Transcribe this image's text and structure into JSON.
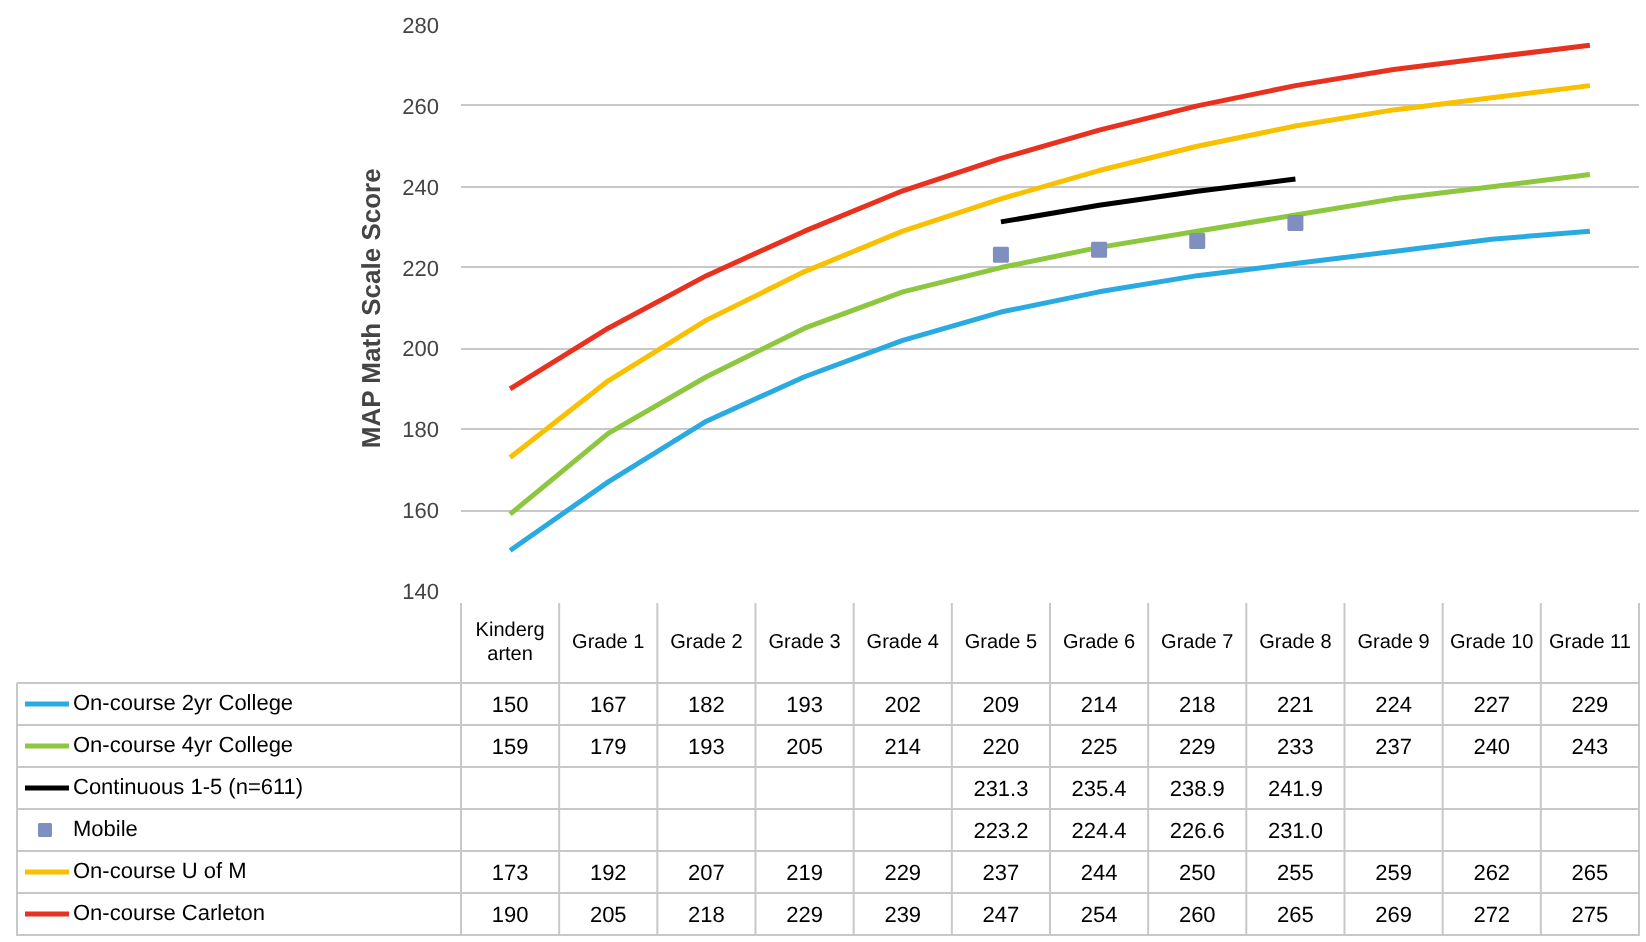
{
  "chart_data": {
    "type": "line",
    "ylabel": "MAP Math Scale Score",
    "categories": [
      "Kindergarten",
      "Grade 1",
      "Grade 2",
      "Grade 3",
      "Grade 4",
      "Grade 5",
      "Grade 6",
      "Grade 7",
      "Grade 8",
      "Grade 9",
      "Grade 10",
      "Grade 11"
    ],
    "ylim": [
      140,
      280
    ],
    "yticks": [
      140,
      160,
      180,
      200,
      220,
      240,
      260,
      280
    ],
    "grid": "y",
    "legend": "bottom left",
    "series": [
      {
        "name": "On-course 2yr College",
        "color": "#29abe2",
        "values": [
          150,
          167,
          182,
          193,
          202,
          209,
          214,
          218,
          221,
          224,
          227,
          229
        ],
        "value_labels": [
          "150",
          "167",
          "182",
          "193",
          "202",
          "209",
          "214",
          "218",
          "221",
          "224",
          "227",
          "229"
        ]
      },
      {
        "name": "On-course 4yr College",
        "color": "#8dc63f",
        "values": [
          159,
          179,
          193,
          205,
          214,
          220,
          225,
          229,
          233,
          237,
          240,
          243
        ],
        "value_labels": [
          "159",
          "179",
          "193",
          "205",
          "214",
          "220",
          "225",
          "229",
          "233",
          "237",
          "240",
          "243"
        ]
      },
      {
        "name": "Continuous 1-5 (n=611)",
        "color": "#000000",
        "values": [
          null,
          null,
          null,
          null,
          null,
          231.3,
          235.4,
          238.9,
          241.9,
          null,
          null,
          null
        ],
        "value_labels": [
          null,
          null,
          null,
          null,
          null,
          "231.3",
          "235.4",
          "238.9",
          "241.9",
          null,
          null,
          null
        ]
      },
      {
        "name": "Mobile",
        "type": "scatter",
        "marker": "square",
        "color": "#7f8fc0",
        "values": [
          null,
          null,
          null,
          null,
          null,
          223.2,
          224.4,
          226.6,
          231.0,
          null,
          null,
          null
        ],
        "value_labels": [
          null,
          null,
          null,
          null,
          null,
          "223.2",
          "224.4",
          "226.6",
          "231.0",
          null,
          null,
          null
        ]
      },
      {
        "name": "On-course U of M",
        "color": "#f9c000",
        "values": [
          173,
          192,
          207,
          219,
          229,
          237,
          244,
          250,
          255,
          259,
          262,
          265
        ],
        "value_labels": [
          "173",
          "192",
          "207",
          "219",
          "229",
          "237",
          "244",
          "250",
          "255",
          "259",
          "262",
          "265"
        ]
      },
      {
        "name": "On-course Carleton",
        "color": "#e8321f",
        "values": [
          190,
          205,
          218,
          229,
          239,
          247,
          254,
          260,
          265,
          269,
          272,
          275
        ],
        "value_labels": [
          "190",
          "205",
          "218",
          "229",
          "239",
          "247",
          "254",
          "260",
          "265",
          "269",
          "272",
          "275"
        ]
      }
    ]
  }
}
